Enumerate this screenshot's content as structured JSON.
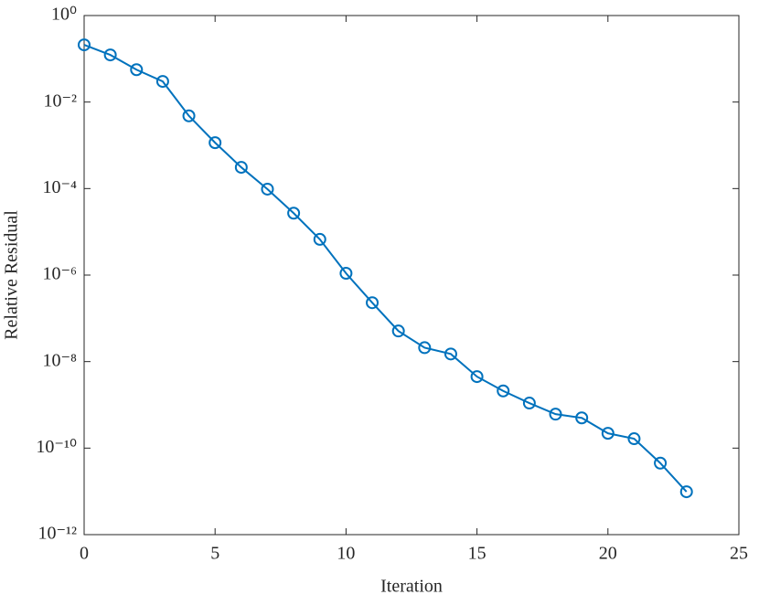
{
  "chart_data": {
    "type": "line",
    "xlabel": "Iteration",
    "ylabel": "Relative Residual",
    "x": [
      0,
      1,
      2,
      3,
      4,
      5,
      6,
      7,
      8,
      9,
      10,
      11,
      12,
      13,
      14,
      15,
      16,
      17,
      18,
      19,
      20,
      21,
      22,
      23
    ],
    "series": [
      {
        "color": "#0072bd",
        "values": [
          0.21,
          0.123,
          0.056,
          0.03,
          0.0048,
          0.00115,
          0.00031,
          9.7e-05,
          2.7e-05,
          6.7e-06,
          1.1e-06,
          2.3e-07,
          5.1e-08,
          2.1e-08,
          1.5e-08,
          4.5e-09,
          2.1e-09,
          1.1e-09,
          6.1e-10,
          5e-10,
          2.2e-10,
          1.65e-10,
          4.5e-11,
          9.8e-12
        ]
      }
    ],
    "xlim": [
      0,
      25
    ],
    "xticks": [
      0,
      5,
      10,
      15,
      20,
      25
    ],
    "ylim": [
      1e-12,
      1
    ],
    "yscale": "log",
    "yticks": [
      {
        "value": 1e-12,
        "label": "10⁻¹²"
      },
      {
        "value": 1e-10,
        "label": "10⁻¹⁰"
      },
      {
        "value": 1e-08,
        "label": "10⁻⁸"
      },
      {
        "value": 1e-06,
        "label": "10⁻⁶"
      },
      {
        "value": 0.0001,
        "label": "10⁻⁴"
      },
      {
        "value": 0.01,
        "label": "10⁻²"
      },
      {
        "value": 1,
        "label": "10⁰"
      }
    ],
    "markers": "circle"
  }
}
